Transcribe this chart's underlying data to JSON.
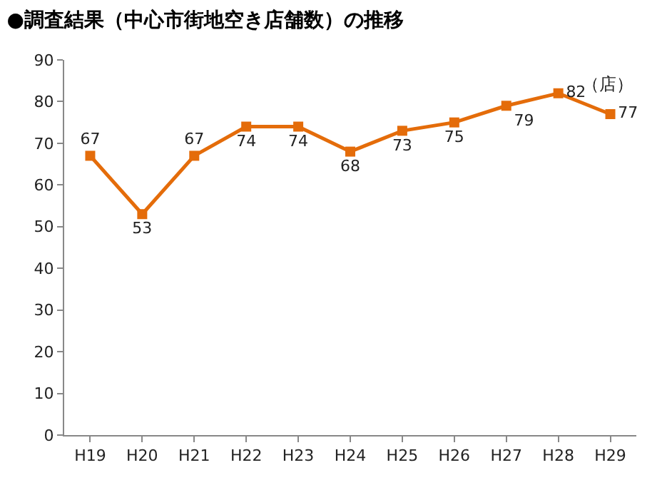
{
  "chart_data": {
    "type": "line",
    "title": "●調査結果（中心市街地空き店舗数）の推移",
    "ylabel": "（店）",
    "categories": [
      "H19",
      "H20",
      "H21",
      "H22",
      "H23",
      "H24",
      "H25",
      "H26",
      "H27",
      "H28",
      "H29"
    ],
    "series": [
      {
        "color": "#e46c0a",
        "values": [
          67,
          53,
          67,
          74,
          74,
          68,
          73,
          75,
          79,
          82,
          77
        ]
      }
    ],
    "ylim": [
      0,
      90
    ],
    "yticks": [
      0,
      10,
      20,
      30,
      40,
      50,
      60,
      70,
      80,
      90
    ],
    "grid": false,
    "legend": false,
    "marker": "square",
    "line_style": "solid",
    "data_labels": true
  }
}
